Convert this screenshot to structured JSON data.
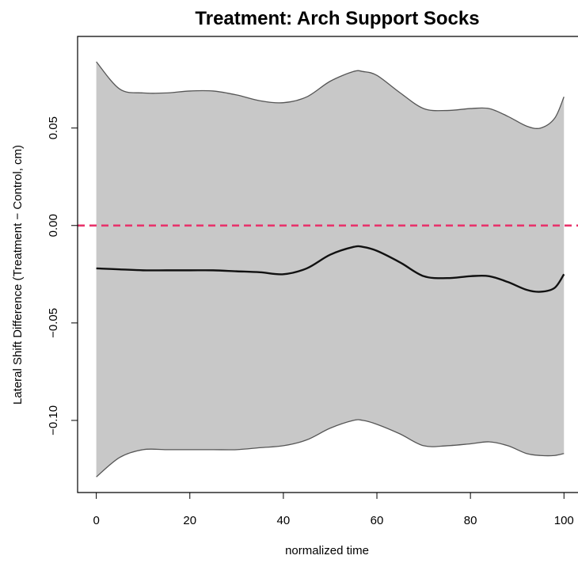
{
  "chart_data": {
    "type": "area",
    "title": "Treatment: Arch Support Socks",
    "xlabel": "normalized time",
    "ylabel": "Lateral Shift Difference (Treatment − Control, cm)",
    "xlim": [
      -4,
      103
    ],
    "ylim": [
      -0.137,
      0.097
    ],
    "x_ticks": [
      0,
      20,
      40,
      60,
      80,
      100
    ],
    "x_tick_labels": [
      "0",
      "20",
      "40",
      "60",
      "80",
      "100"
    ],
    "y_ticks": [
      -0.1,
      -0.05,
      0.0,
      0.05
    ],
    "y_tick_labels": [
      "−0.10",
      "−0.05",
      "0.00",
      "0.05"
    ],
    "reference_line": {
      "y": 0.0,
      "style": "dashed",
      "color": "#e8336b"
    },
    "band_fill": "#c8c8c8",
    "band_edge_color": "#555555",
    "mean_color": "#111111",
    "x": [
      0,
      5,
      10,
      15,
      20,
      25,
      30,
      35,
      40,
      45,
      50,
      55,
      57,
      60,
      65,
      70,
      75,
      80,
      84,
      88,
      92,
      95,
      98,
      100
    ],
    "series": [
      {
        "role": "upper",
        "values": [
          0.084,
          0.07,
          0.068,
          0.068,
          0.069,
          0.069,
          0.067,
          0.064,
          0.063,
          0.066,
          0.074,
          0.079,
          0.079,
          0.077,
          0.068,
          0.06,
          0.059,
          0.06,
          0.06,
          0.056,
          0.051,
          0.05,
          0.055,
          0.066
        ]
      },
      {
        "role": "mean",
        "values": [
          -0.022,
          -0.0225,
          -0.023,
          -0.023,
          -0.023,
          -0.023,
          -0.0235,
          -0.024,
          -0.025,
          -0.022,
          -0.015,
          -0.011,
          -0.011,
          -0.013,
          -0.019,
          -0.026,
          -0.027,
          -0.026,
          -0.026,
          -0.029,
          -0.033,
          -0.034,
          -0.032,
          -0.025
        ]
      },
      {
        "role": "lower",
        "values": [
          -0.129,
          -0.119,
          -0.115,
          -0.115,
          -0.115,
          -0.115,
          -0.115,
          -0.114,
          -0.113,
          -0.11,
          -0.104,
          -0.1,
          -0.1,
          -0.102,
          -0.107,
          -0.113,
          -0.113,
          -0.112,
          -0.111,
          -0.113,
          -0.117,
          -0.118,
          -0.118,
          -0.117
        ]
      }
    ]
  }
}
